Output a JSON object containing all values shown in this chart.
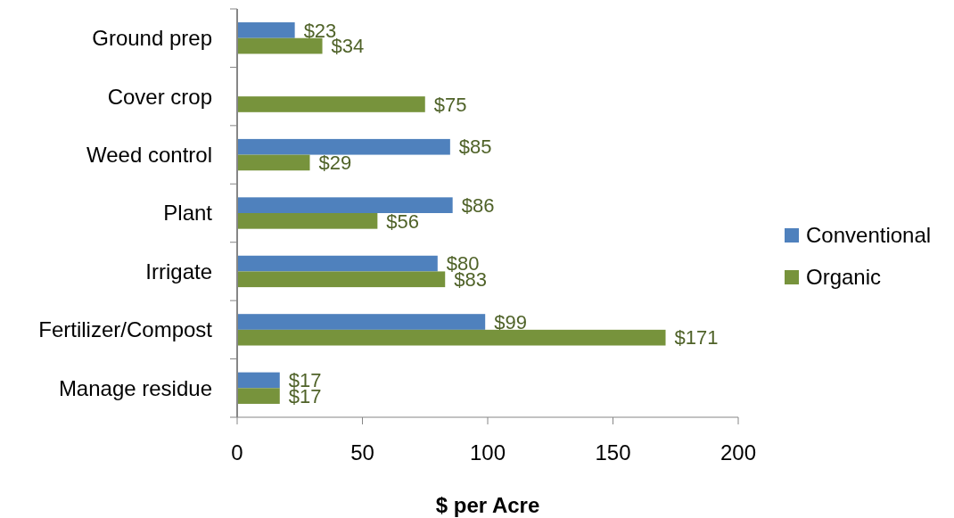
{
  "chart_data": {
    "type": "bar",
    "orientation": "horizontal",
    "xlabel": "$ per Acre",
    "categories": [
      "Ground prep",
      "Cover crop",
      "Weed control",
      "Plant",
      "Irrigate",
      "Fertilizer/Compost",
      "Manage residue"
    ],
    "series": [
      {
        "name": "Conventional",
        "color": "#4f81bd",
        "values": [
          23,
          null,
          85,
          86,
          80,
          99,
          17
        ],
        "value_labels": [
          "$23",
          null,
          "$85",
          "$86",
          "$80",
          "$99",
          "$17"
        ]
      },
      {
        "name": "Organic",
        "color": "#77933c",
        "values": [
          34,
          75,
          29,
          56,
          83,
          171,
          17
        ],
        "value_labels": [
          "$34",
          "$75",
          "$29",
          "$56",
          "$83",
          "$171",
          "$17"
        ]
      }
    ],
    "xlim": [
      0,
      200
    ],
    "xticks": [
      0,
      50,
      100,
      150,
      200
    ],
    "grid": false,
    "legend": "right"
  }
}
